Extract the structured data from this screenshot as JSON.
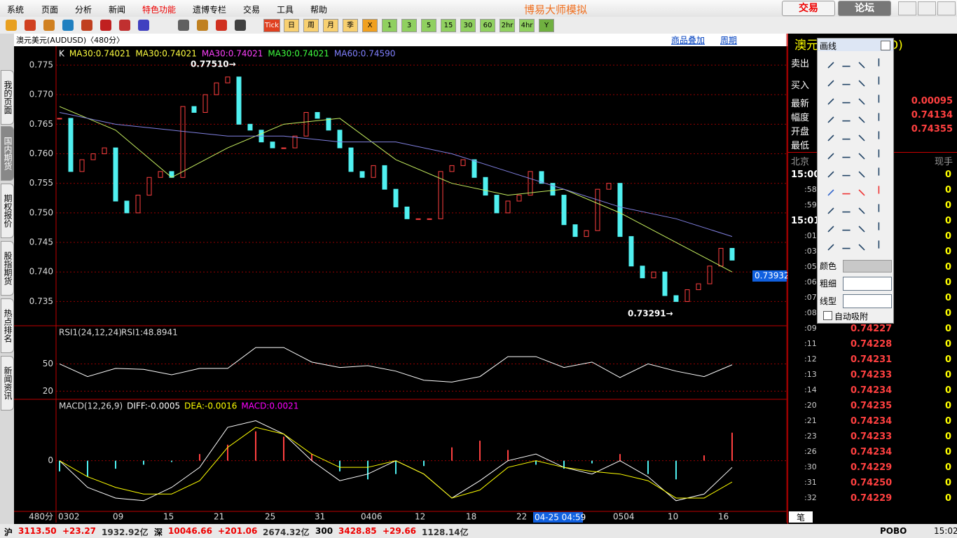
{
  "menu": {
    "items": [
      "系统",
      "页面",
      "分析",
      "新闻",
      "特色功能",
      "遗博专栏",
      "交易",
      "工具",
      "帮助"
    ],
    "app_title": "博易大师模拟",
    "buttons": [
      "交易",
      "论坛"
    ]
  },
  "toolbar": {
    "buttons": [
      "Tick",
      "日",
      "周",
      "月",
      "季",
      "X",
      "1",
      "3",
      "5",
      "15",
      "30",
      "60",
      "2hr",
      "4hr",
      "Y"
    ]
  },
  "sidebar": {
    "tabs": [
      "我的页面",
      "国内期货",
      "期权报价",
      "股指期货",
      "热点排名",
      "新闻资讯"
    ]
  },
  "chart": {
    "type": "candlestick",
    "header": "澳元美元(AUDUSD)〈480分〉",
    "links": [
      "商品叠加",
      "周期"
    ],
    "legend": [
      {
        "text": "K",
        "color": "#ffffff"
      },
      {
        "text": "MA30:0.74021",
        "color": "#ffff40"
      },
      {
        "text": "MA30:0.74021",
        "color": "#ffff40"
      },
      {
        "text": "MA30:0.74021",
        "color": "#ff40ff"
      },
      {
        "text": "MA30:0.74021",
        "color": "#40ff40"
      },
      {
        "text": "MA60:0.74590",
        "color": "#8080ff"
      }
    ],
    "ylim": [
      0.7309,
      0.7782
    ],
    "yticks": [
      0.735,
      {
        "value": 0.74,
        "label": "0.740"
      },
      0.745,
      {
        "value": 0.75,
        "label": "0.750"
      },
      0.755,
      {
        "value": 0.76,
        "label": "0.760"
      },
      0.765,
      {
        "value": 0.77,
        "label": "0.770"
      },
      0.775
    ],
    "close": [
      0.766,
      0.757,
      0.759,
      0.76,
      0.761,
      0.752,
      0.75,
      0.753,
      0.756,
      0.757,
      0.756,
      0.768,
      0.767,
      0.77,
      0.772,
      0.773,
      0.765,
      0.764,
      0.762,
      0.761,
      0.761,
      0.763,
      0.767,
      0.766,
      0.764,
      0.761,
      0.757,
      0.756,
      0.758,
      0.754,
      0.751,
      0.749,
      0.749,
      0.749,
      0.757,
      0.758,
      0.759,
      0.756,
      0.753,
      0.75,
      0.752,
      0.753,
      0.757,
      0.755,
      0.753,
      0.748,
      0.746,
      0.747,
      0.754,
      0.755,
      0.746,
      0.741,
      0.739,
      0.74,
      0.736,
      0.735,
      0.737,
      0.738,
      0.741,
      0.744,
      0.742
    ],
    "ma30": {
      "color": "#c8f060",
      "values": [
        0.768,
        0.764,
        0.756,
        0.761,
        0.765,
        0.766,
        0.759,
        0.755,
        0.753,
        0.754,
        0.75,
        0.745,
        0.74
      ]
    },
    "ma60": {
      "color": "#8080e0",
      "values": [
        0.767,
        0.765,
        0.764,
        0.763,
        0.763,
        0.762,
        0.762,
        0.76,
        0.757,
        0.754,
        0.751,
        0.749,
        0.746
      ]
    },
    "high_label": {
      "value": 0.7751,
      "label": "0.77510→"
    },
    "low_label": {
      "value": 0.73291,
      "label": "0.73291→"
    },
    "last_price": {
      "value": 0.73932,
      "label": "0.73932"
    },
    "rsi": {
      "legend": [
        "RSI1(24,12,24)",
        "RSI1:48.8941"
      ],
      "ylim": [
        11,
        92
      ],
      "yticks": [
        20,
        50
      ],
      "values": [
        50,
        36,
        45,
        44,
        38,
        45,
        45,
        68,
        68,
        52,
        46,
        48,
        42,
        32,
        30,
        36,
        58,
        58,
        46,
        52,
        35,
        50,
        42,
        36,
        49
      ]
    },
    "macd": {
      "legend": [
        "MACD(12,26,9)",
        "DIFF:-0.0005",
        "DEA:-0.0016",
        "MACD:0.0021"
      ],
      "ylim": [
        -0.0038,
        0.0045
      ],
      "yticks": [
        0
      ],
      "hist": [
        -0.0008,
        -0.0012,
        -0.0006,
        -0.0003,
        -0.0001,
        0.0005,
        0.0012,
        0.0022,
        0.0018,
        0.0005,
        -0.0008,
        -0.0014,
        -0.001,
        -0.0004,
        0.001,
        0.0015,
        0.0008,
        -0.0003,
        -0.0006,
        -0.0002,
        0.0005,
        -0.001,
        -0.0014,
        0.0004,
        0.0021
      ],
      "diff": [
        0.0,
        -0.002,
        -0.0028,
        -0.003,
        -0.002,
        -0.0005,
        0.0025,
        0.003,
        0.002,
        0.0,
        -0.0015,
        -0.001,
        0.0,
        -0.001,
        -0.0028,
        -0.0015,
        0.0,
        0.0005,
        -0.0005,
        -0.001,
        0.0,
        -0.0012,
        -0.003,
        -0.0025,
        -0.0005
      ],
      "dea": [
        0.0,
        -0.0012,
        -0.002,
        -0.0025,
        -0.0025,
        -0.0015,
        0.001,
        0.0025,
        0.002,
        0.0005,
        -0.0005,
        -0.0005,
        0.0,
        -0.001,
        -0.0028,
        -0.0022,
        -0.0005,
        0.0,
        -0.0005,
        -0.0008,
        -0.001,
        -0.0015,
        -0.0028,
        -0.0028,
        -0.0016
      ]
    },
    "period": "480分",
    "time_labels": [
      "0302",
      "09",
      "15",
      "21",
      "25",
      "31",
      "0406",
      "12",
      "18",
      "22",
      "0504",
      "10",
      "16"
    ],
    "cursor_time": "04-25 04:59"
  },
  "quote": {
    "title": "澳元美元(AUDUSD)",
    "sell": "卖出",
    "buy": "买入",
    "fields": [
      {
        "name": "最新",
        "value": "0.00095"
      },
      {
        "name": "幅度",
        "value": "0.74134"
      },
      {
        "name": "开盘",
        "value": "0.74355"
      },
      {
        "name": "最低"
      }
    ],
    "tick_header": [
      "北京",
      "现手"
    ],
    "ticks": [
      {
        "time": "15:00",
        "vol": "0"
      },
      {
        "time": ":58",
        "vol": "0"
      },
      {
        "time": ":59",
        "vol": "0"
      },
      {
        "time": "15:01",
        "vol": "0"
      },
      {
        "time": ":01",
        "vol": "0"
      },
      {
        "time": ":03",
        "vol": "0"
      },
      {
        "time": ":05",
        "vol": "0"
      },
      {
        "time": ":06",
        "vol": "0"
      },
      {
        "time": ":07",
        "vol": "0"
      },
      {
        "time": ":08",
        "vol": "0"
      },
      {
        "time": ":09",
        "price": "0.74227",
        "vol": "0"
      },
      {
        "time": ":11",
        "price": "0.74228",
        "vol": "0"
      },
      {
        "time": ":12",
        "price": "0.74231",
        "vol": "0"
      },
      {
        "time": ":13",
        "price": "0.74233",
        "vol": "0"
      },
      {
        "time": ":14",
        "price": "0.74234",
        "vol": "0"
      },
      {
        "time": ":20",
        "price": "0.74235",
        "vol": "0"
      },
      {
        "time": ":21",
        "price": "0.74234",
        "vol": "0"
      },
      {
        "time": ":23",
        "price": "0.74233",
        "vol": "0"
      },
      {
        "time": ":26",
        "price": "0.74234",
        "vol": "0"
      },
      {
        "time": ":30",
        "price": "0.74229",
        "vol": "0"
      },
      {
        "time": ":31",
        "price": "0.74250",
        "vol": "0"
      },
      {
        "time": ":32",
        "price": "0.74229",
        "vol": "0"
      }
    ],
    "tab": "笔"
  },
  "draw_panel": {
    "title": "画线",
    "color_label": "颜色",
    "width_label": "粗细",
    "style_label": "线型",
    "auto_snap": "自动吸附"
  },
  "status": {
    "groups": [
      {
        "name": "沪",
        "price": "3113.50",
        "change": "+23.27",
        "amount": "1932.92亿"
      },
      {
        "name": "深",
        "price": "10046.66",
        "change": "+201.06",
        "amount": "2674.32亿"
      },
      {
        "name": "300",
        "price": "3428.85",
        "change": "+29.66",
        "amount": "1128.14亿"
      }
    ],
    "brand": "POBO",
    "time": "15:02"
  }
}
